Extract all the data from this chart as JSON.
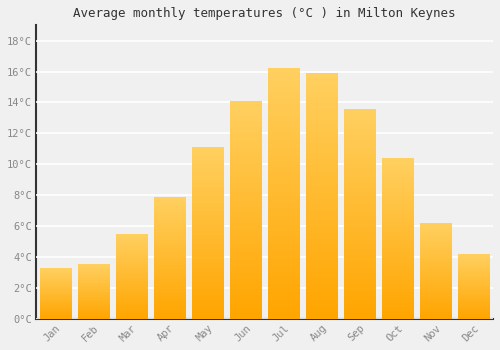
{
  "title": "Average monthly temperatures (°C ) in Milton Keynes",
  "months": [
    "Jan",
    "Feb",
    "Mar",
    "Apr",
    "May",
    "Jun",
    "Jul",
    "Aug",
    "Sep",
    "Oct",
    "Nov",
    "Dec"
  ],
  "values": [
    3.3,
    3.5,
    5.5,
    7.9,
    11.1,
    14.1,
    16.2,
    15.9,
    13.6,
    10.4,
    6.2,
    4.2
  ],
  "bar_color": "#FFA500",
  "bar_color_light": "#FFD060",
  "background_color": "#F0F0F0",
  "grid_color": "#FFFFFF",
  "tick_label_color": "#888888",
  "title_color": "#333333",
  "spine_color": "#333333",
  "ylim": [
    0,
    19
  ],
  "yticks": [
    0,
    2,
    4,
    6,
    8,
    10,
    12,
    14,
    16,
    18
  ],
  "ytick_labels": [
    "0°C",
    "2°C",
    "4°C",
    "6°C",
    "8°C",
    "10°C",
    "12°C",
    "14°C",
    "16°C",
    "18°C"
  ]
}
